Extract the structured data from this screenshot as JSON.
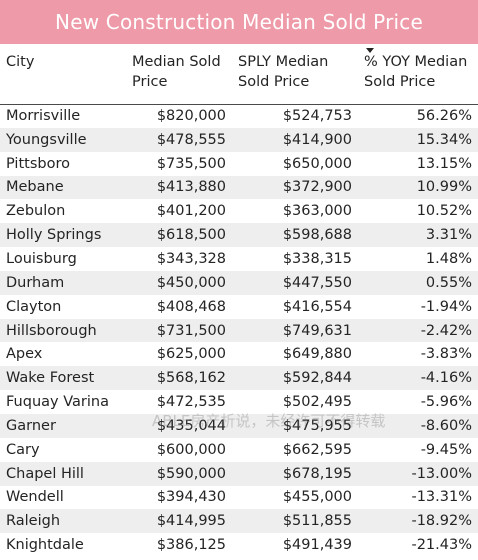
{
  "title": "New Construction Median Sold Price",
  "columns": [
    "City",
    "Median Sold Price",
    "SPLY Median Sold Price",
    "% YOY Median Sold Price"
  ],
  "rows": [
    [
      "Morrisville",
      "$820,000",
      "$524,753",
      "56.26%"
    ],
    [
      "Youngsville",
      "$478,555",
      "$414,900",
      "15.34%"
    ],
    [
      "Pittsboro",
      "$735,500",
      "$650,000",
      "13.15%"
    ],
    [
      "Mebane",
      "$413,880",
      "$372,900",
      "10.99%"
    ],
    [
      "Zebulon",
      "$401,200",
      "$363,000",
      "10.52%"
    ],
    [
      "Holly Springs",
      "$618,500",
      "$598,688",
      "3.31%"
    ],
    [
      "Louisburg",
      "$343,328",
      "$338,315",
      "1.48%"
    ],
    [
      "Durham",
      "$450,000",
      "$447,550",
      "0.55%"
    ],
    [
      "Clayton",
      "$408,468",
      "$416,554",
      "-1.94%"
    ],
    [
      "Hillsborough",
      "$731,500",
      "$749,631",
      "-2.42%"
    ],
    [
      "Apex",
      "$625,000",
      "$649,880",
      "-3.83%"
    ],
    [
      "Wake Forest",
      "$568,162",
      "$592,844",
      "-4.16%"
    ],
    [
      "Fuquay Varina",
      "$472,535",
      "$502,495",
      "-5.96%"
    ],
    [
      "Garner",
      "$435,044",
      "$475,955",
      "-8.60%"
    ],
    [
      "Cary",
      "$600,000",
      "$662,595",
      "-9.45%"
    ],
    [
      "Chapel Hill",
      "$590,000",
      "$678,195",
      "-13.00%"
    ],
    [
      "Wendell",
      "$394,430",
      "$455,000",
      "-13.31%"
    ],
    [
      "Raleigh",
      "$414,995",
      "$511,855",
      "-18.92%"
    ],
    [
      "Knightdale",
      "$386,125",
      "$491,439",
      "-21.43%"
    ]
  ],
  "sort": {
    "column": "% YOY Median Sold Price",
    "direction": "descending",
    "icon": "sort-descending-icon"
  },
  "watermark": "ABLE房产析说，未经许可不得转载",
  "colors": {
    "title_bg": "#ee9aa8",
    "title_text": "#ffffff",
    "stripe": "#eeeeee"
  }
}
